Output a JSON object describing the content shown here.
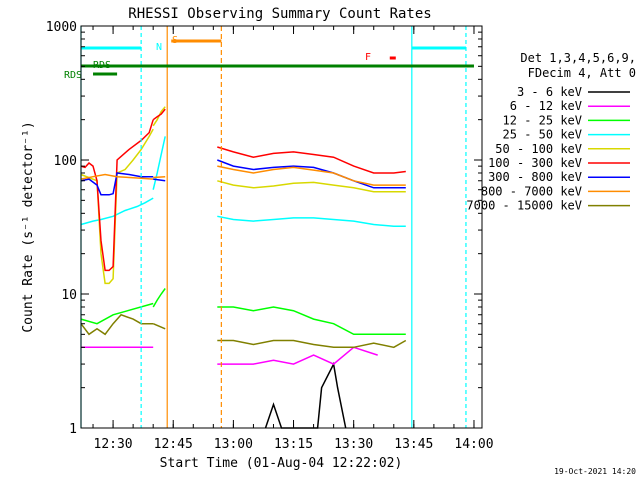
{
  "chart_data": {
    "type": "line",
    "title": "RHESSI Observing Summary Count Rates",
    "xlabel": "Start Time (01-Aug-04 12:22:02)",
    "ylabel": "Count Rate (s⁻¹ detector⁻¹)",
    "yscale": "log",
    "ylim": [
      1,
      1000
    ],
    "y_ticks": [
      "1",
      "10",
      "100",
      "1000"
    ],
    "x_ticks": [
      "12:30",
      "12:45",
      "13:00",
      "13:15",
      "13:30",
      "13:45",
      "14:00"
    ],
    "xlim_minutes": [
      22,
      122
    ],
    "legend_header": [
      "Det 1,3,4,5,6,9,",
      "FDecim 4, Att 0"
    ],
    "legend_position": "right",
    "series": [
      {
        "name": "3 - 6 keV",
        "color": "#000000"
      },
      {
        "name": "6 - 12 keV",
        "color": "#ff00ff"
      },
      {
        "name": "12 - 25 keV",
        "color": "#00ff00"
      },
      {
        "name": "25 - 50 keV",
        "color": "#00ffff"
      },
      {
        "name": "50 - 100 keV",
        "color": "#d8d800"
      },
      {
        "name": "100 - 300 keV",
        "color": "#ff0000"
      },
      {
        "name": "300 - 800 keV",
        "color": "#0000ff"
      },
      {
        "name": "800 - 7000 keV",
        "color": "#ff8c00"
      },
      {
        "name": "7000 - 15000 keV",
        "color": "#808000"
      }
    ],
    "flag_labels": [
      {
        "label": "N",
        "color": "#00ffff"
      },
      {
        "label": "S",
        "color": "#ff8c00"
      },
      {
        "label": "RDS",
        "color": "#008000"
      },
      {
        "label": "RDS",
        "color": "#008000"
      },
      {
        "label": "F",
        "color": "#ff0000"
      }
    ],
    "segments": [
      {
        "x_start": 22,
        "x_end": 40,
        "points": {
          "6 - 12 keV": [
            [
              22,
              4
            ],
            [
              40,
              4
            ]
          ],
          "12 - 25 keV": [
            [
              22,
              6.5
            ],
            [
              26,
              6
            ],
            [
              30,
              7
            ],
            [
              40,
              8.5
            ]
          ],
          "25 - 50 keV": [
            [
              22,
              33
            ],
            [
              25,
              35
            ],
            [
              27,
              36
            ],
            [
              30,
              38
            ],
            [
              33,
              42
            ],
            [
              36,
              45
            ],
            [
              38,
              48
            ],
            [
              40,
              52
            ]
          ],
          "50 - 100 keV": [
            [
              22,
              78
            ],
            [
              26,
              70
            ],
            [
              27,
              20
            ],
            [
              28,
              12
            ],
            [
              29,
              12
            ],
            [
              30,
              13
            ],
            [
              31,
              80
            ],
            [
              33,
              85
            ],
            [
              35,
              100
            ],
            [
              37,
              120
            ],
            [
              39,
              150
            ],
            [
              40,
              170
            ]
          ],
          "100 - 300 keV": [
            [
              22,
              90
            ],
            [
              23,
              88
            ],
            [
              24,
              95
            ],
            [
              25,
              90
            ],
            [
              26,
              70
            ],
            [
              27,
              25
            ],
            [
              28,
              15
            ],
            [
              29,
              15
            ],
            [
              30,
              16
            ],
            [
              31,
              100
            ],
            [
              34,
              120
            ],
            [
              37,
              140
            ],
            [
              39,
              160
            ],
            [
              40,
              200
            ]
          ],
          "300 - 800 keV": [
            [
              22,
              70
            ],
            [
              24,
              72
            ],
            [
              26,
              65
            ],
            [
              27,
              55
            ],
            [
              28,
              55
            ],
            [
              29,
              55
            ],
            [
              30,
              56
            ],
            [
              31,
              80
            ],
            [
              34,
              78
            ],
            [
              37,
              75
            ],
            [
              40,
              75
            ]
          ],
          "800 - 7000 keV": [
            [
              22,
              72
            ],
            [
              25,
              75
            ],
            [
              28,
              78
            ],
            [
              31,
              75
            ],
            [
              34,
              74
            ],
            [
              37,
              73
            ],
            [
              40,
              72
            ]
          ],
          "7000 - 15000 keV": [
            [
              22,
              6
            ],
            [
              24,
              5
            ],
            [
              26,
              5.5
            ],
            [
              28,
              5
            ],
            [
              30,
              6
            ],
            [
              32,
              7
            ],
            [
              35,
              6.5
            ],
            [
              37,
              6
            ],
            [
              40,
              6
            ]
          ]
        }
      },
      {
        "x_start": 40,
        "x_end": 43,
        "points": {
          "12 - 25 keV": [
            [
              40,
              8
            ],
            [
              41,
              9
            ],
            [
              42,
              10
            ],
            [
              43,
              11
            ]
          ],
          "25 - 50 keV": [
            [
              40,
              60
            ],
            [
              41,
              80
            ],
            [
              42,
              110
            ],
            [
              43,
              150
            ]
          ],
          "50 - 100 keV": [
            [
              40,
              180
            ],
            [
              41,
              200
            ],
            [
              42,
              230
            ],
            [
              43,
              250
            ]
          ],
          "100 - 300 keV": [
            [
              40,
              200
            ],
            [
              41,
              210
            ],
            [
              42,
              220
            ],
            [
              43,
              240
            ]
          ],
          "300 - 800 keV": [
            [
              40,
              72
            ],
            [
              43,
              70
            ]
          ],
          "800 - 7000 keV": [
            [
              40,
              74
            ],
            [
              43,
              75
            ]
          ],
          "7000 - 15000 keV": [
            [
              40,
              6
            ],
            [
              43,
              5.5
            ]
          ]
        }
      },
      {
        "x_start": 55,
        "x_end": 120,
        "points": {
          "3 - 6 keV": [
            [
              68,
              1
            ],
            [
              70,
              1.5
            ],
            [
              72,
              1
            ],
            [
              81,
              1
            ],
            [
              82,
              2
            ],
            [
              85,
              3
            ],
            [
              86,
              2
            ],
            [
              88,
              1
            ]
          ],
          "6 - 12 keV": [
            [
              56,
              3
            ],
            [
              60,
              3
            ],
            [
              65,
              3
            ],
            [
              70,
              3.2
            ],
            [
              75,
              3
            ],
            [
              80,
              3.5
            ],
            [
              85,
              3
            ],
            [
              90,
              4
            ],
            [
              96,
              3.5
            ]
          ],
          "12 - 25 keV": [
            [
              56,
              8
            ],
            [
              60,
              8
            ],
            [
              65,
              7.5
            ],
            [
              70,
              8
            ],
            [
              75,
              7.5
            ],
            [
              80,
              6.5
            ],
            [
              85,
              6
            ],
            [
              90,
              5
            ],
            [
              95,
              5
            ],
            [
              100,
              5
            ],
            [
              103,
              5
            ]
          ],
          "25 - 50 keV": [
            [
              56,
              38
            ],
            [
              60,
              36
            ],
            [
              65,
              35
            ],
            [
              70,
              36
            ],
            [
              75,
              37
            ],
            [
              80,
              37
            ],
            [
              85,
              36
            ],
            [
              90,
              35
            ],
            [
              95,
              33
            ],
            [
              100,
              32
            ],
            [
              103,
              32
            ]
          ],
          "50 - 100 keV": [
            [
              56,
              70
            ],
            [
              60,
              65
            ],
            [
              65,
              62
            ],
            [
              70,
              64
            ],
            [
              75,
              67
            ],
            [
              80,
              68
            ],
            [
              85,
              65
            ],
            [
              90,
              62
            ],
            [
              95,
              58
            ],
            [
              100,
              58
            ],
            [
              103,
              58
            ]
          ],
          "100 - 300 keV": [
            [
              56,
              125
            ],
            [
              60,
              115
            ],
            [
              65,
              105
            ],
            [
              70,
              112
            ],
            [
              75,
              115
            ],
            [
              80,
              110
            ],
            [
              85,
              105
            ],
            [
              90,
              90
            ],
            [
              95,
              80
            ],
            [
              100,
              80
            ],
            [
              103,
              82
            ]
          ],
          "300 - 800 keV": [
            [
              56,
              100
            ],
            [
              60,
              90
            ],
            [
              65,
              85
            ],
            [
              70,
              88
            ],
            [
              75,
              90
            ],
            [
              80,
              88
            ],
            [
              85,
              80
            ],
            [
              90,
              70
            ],
            [
              95,
              62
            ],
            [
              100,
              62
            ],
            [
              103,
              62
            ]
          ],
          "800 - 7000 keV": [
            [
              56,
              90
            ],
            [
              60,
              85
            ],
            [
              65,
              80
            ],
            [
              70,
              85
            ],
            [
              75,
              88
            ],
            [
              80,
              84
            ],
            [
              85,
              80
            ],
            [
              90,
              70
            ],
            [
              95,
              65
            ],
            [
              100,
              65
            ],
            [
              103,
              65
            ]
          ],
          "7000 - 15000 keV": [
            [
              56,
              4.5
            ],
            [
              60,
              4.5
            ],
            [
              65,
              4.2
            ],
            [
              70,
              4.5
            ],
            [
              75,
              4.5
            ],
            [
              80,
              4.2
            ],
            [
              85,
              4
            ],
            [
              90,
              4
            ],
            [
              95,
              4.3
            ],
            [
              100,
              4
            ],
            [
              103,
              4.5
            ]
          ]
        }
      }
    ]
  },
  "footer": {
    "timestamp": "19-Oct-2021 14:20"
  }
}
